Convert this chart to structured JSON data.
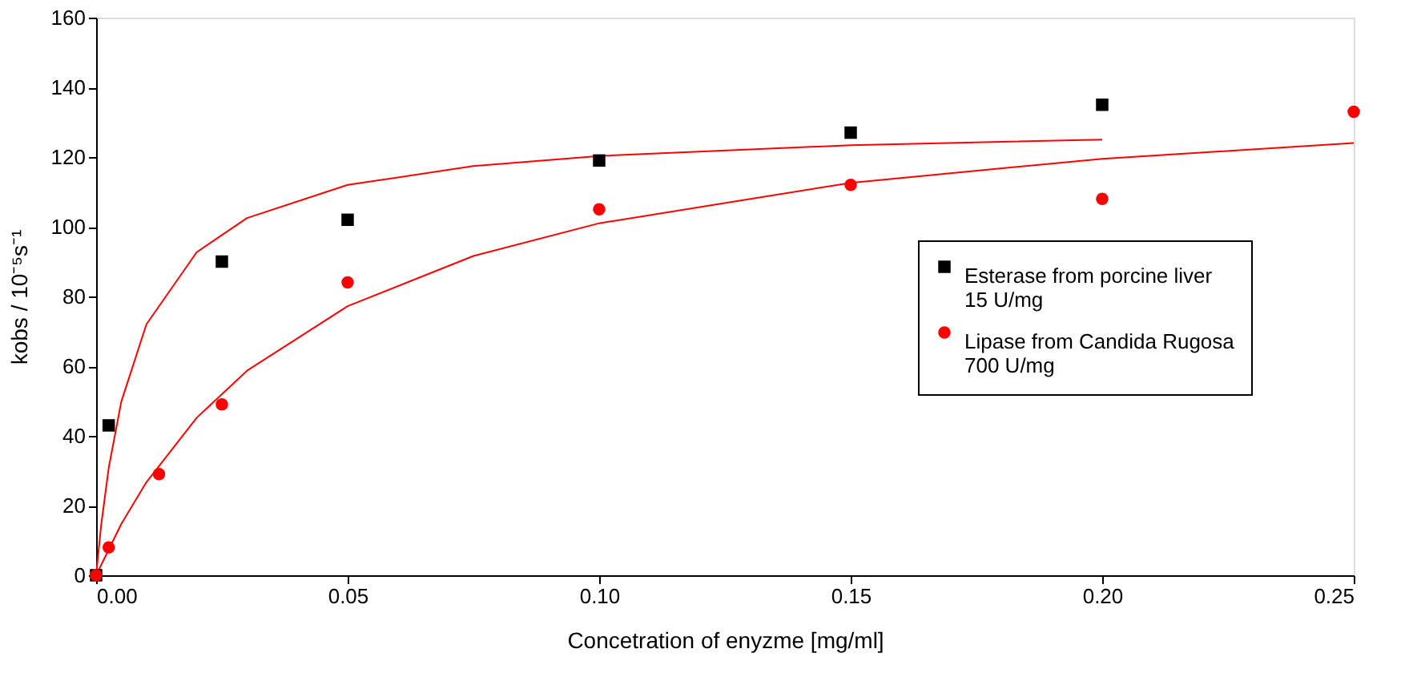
{
  "chart_data": {
    "type": "scatter",
    "xlabel": "Concetration of enyzme [mg/ml]",
    "ylabel": "kobs / 10⁻⁵s⁻¹",
    "xlim": [
      0,
      0.25
    ],
    "ylim": [
      0,
      160
    ],
    "xticks": [
      {
        "value": 0,
        "label": "0.00"
      },
      {
        "value": 0.05,
        "label": "0.05"
      },
      {
        "value": 0.1,
        "label": "0.10"
      },
      {
        "value": 0.15,
        "label": "0.15"
      },
      {
        "value": 0.2,
        "label": "0.20"
      },
      {
        "value": 0.25,
        "label": "0.25"
      }
    ],
    "yticks": [
      0,
      20,
      40,
      60,
      80,
      100,
      120,
      140,
      160
    ],
    "grid": false,
    "legend": "right",
    "series": [
      {
        "name": "Esterase from porcine liver\n15 U/mg",
        "color": "#000000",
        "marker": "square",
        "x": [
          0,
          0.0025,
          0.025,
          0.05,
          0.1,
          0.15,
          0.2
        ],
        "values": [
          0,
          43,
          90,
          102,
          119,
          127,
          135
        ]
      },
      {
        "name": "Lipase from Candida Rugosa\n700 U/mg",
        "color": "#ff0000",
        "marker": "circle",
        "x": [
          0,
          0.0025,
          0.0125,
          0.025,
          0.05,
          0.1,
          0.15,
          0.2,
          0.25
        ],
        "values": [
          0,
          8,
          29,
          49,
          84,
          105,
          112,
          108,
          133
        ]
      },
      {
        "color": "#ff0000",
        "type": "line",
        "x": [
          0,
          0.001,
          0.0025,
          0.005,
          0.01,
          0.02,
          0.03,
          0.05,
          0.075,
          0.1,
          0.15,
          0.2
        ],
        "values": [
          0,
          14.4,
          30.8,
          49.8,
          72.0,
          92.7,
          102.5,
          112.0,
          117.4,
          120.3,
          123.4,
          125.0
        ]
      },
      {
        "color": "#ff0000",
        "type": "line",
        "x": [
          0,
          0.005,
          0.01,
          0.02,
          0.03,
          0.05,
          0.075,
          0.1,
          0.15,
          0.2,
          0.25
        ],
        "values": [
          0,
          14.7,
          26.7,
          45.2,
          58.7,
          77.2,
          91.6,
          101.0,
          112.6,
          119.5,
          124.0
        ]
      }
    ]
  }
}
